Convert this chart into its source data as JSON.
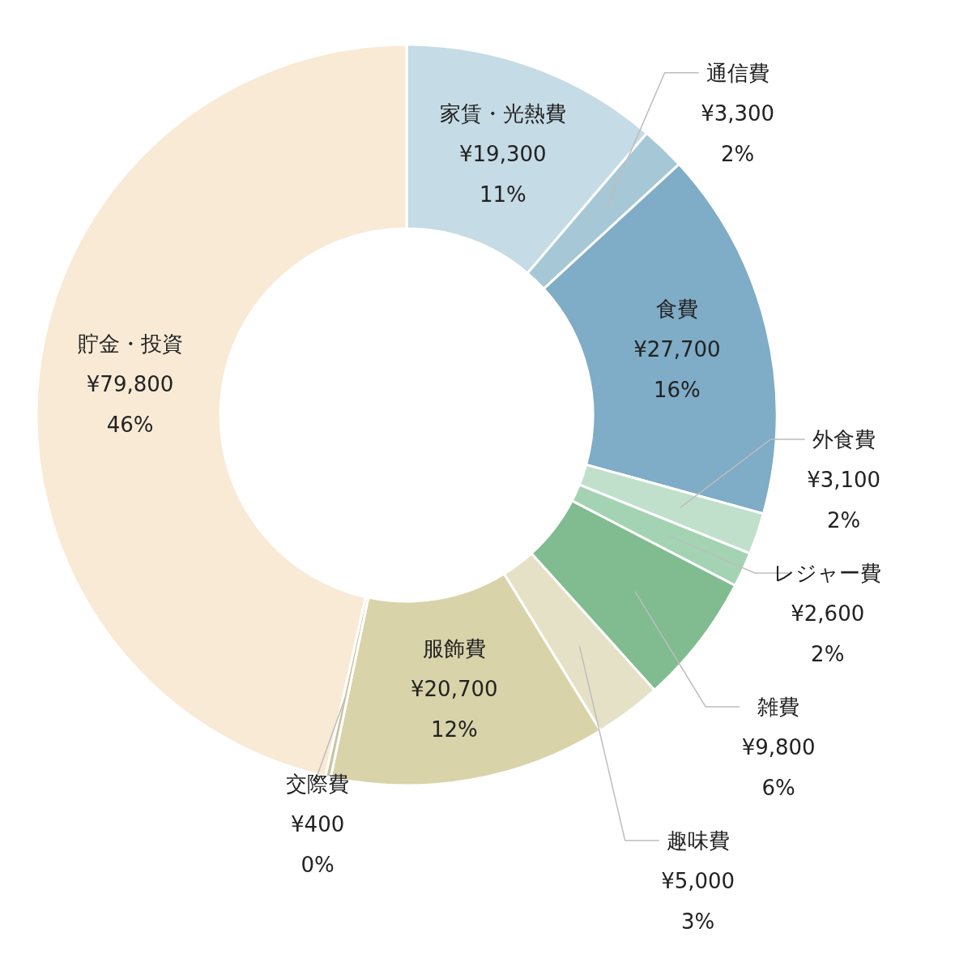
{
  "chart_data": {
    "type": "donut",
    "categories": [
      "家賃・光熱費",
      "通信費",
      "食費",
      "外食費",
      "レジャー費",
      "雑費",
      "趣味費",
      "服飾費",
      "交際費",
      "貯金・投資"
    ],
    "values": [
      19300,
      3300,
      27700,
      3100,
      2600,
      9800,
      5000,
      20700,
      400,
      79800
    ],
    "value_labels": [
      "¥19,300\n11%",
      "¥3,300\n2%",
      "¥27,700\n16%",
      "¥3,100\n2%",
      "¥2,600\n2%",
      "¥9,800\n6%",
      "¥5,000\n3%",
      "¥20,700\n12%",
      "¥400\n0%",
      "¥79,800\n46%"
    ],
    "colors": [
      "#c5dbe5",
      "#a6c8d6",
      "#7facc6",
      "#c1e0cc",
      "#a3d3b3",
      "#80bc8f",
      "#e4e1c6",
      "#d9d3aa",
      "#c8c3a0",
      "#f8ead5"
    ],
    "legend": false
  }
}
